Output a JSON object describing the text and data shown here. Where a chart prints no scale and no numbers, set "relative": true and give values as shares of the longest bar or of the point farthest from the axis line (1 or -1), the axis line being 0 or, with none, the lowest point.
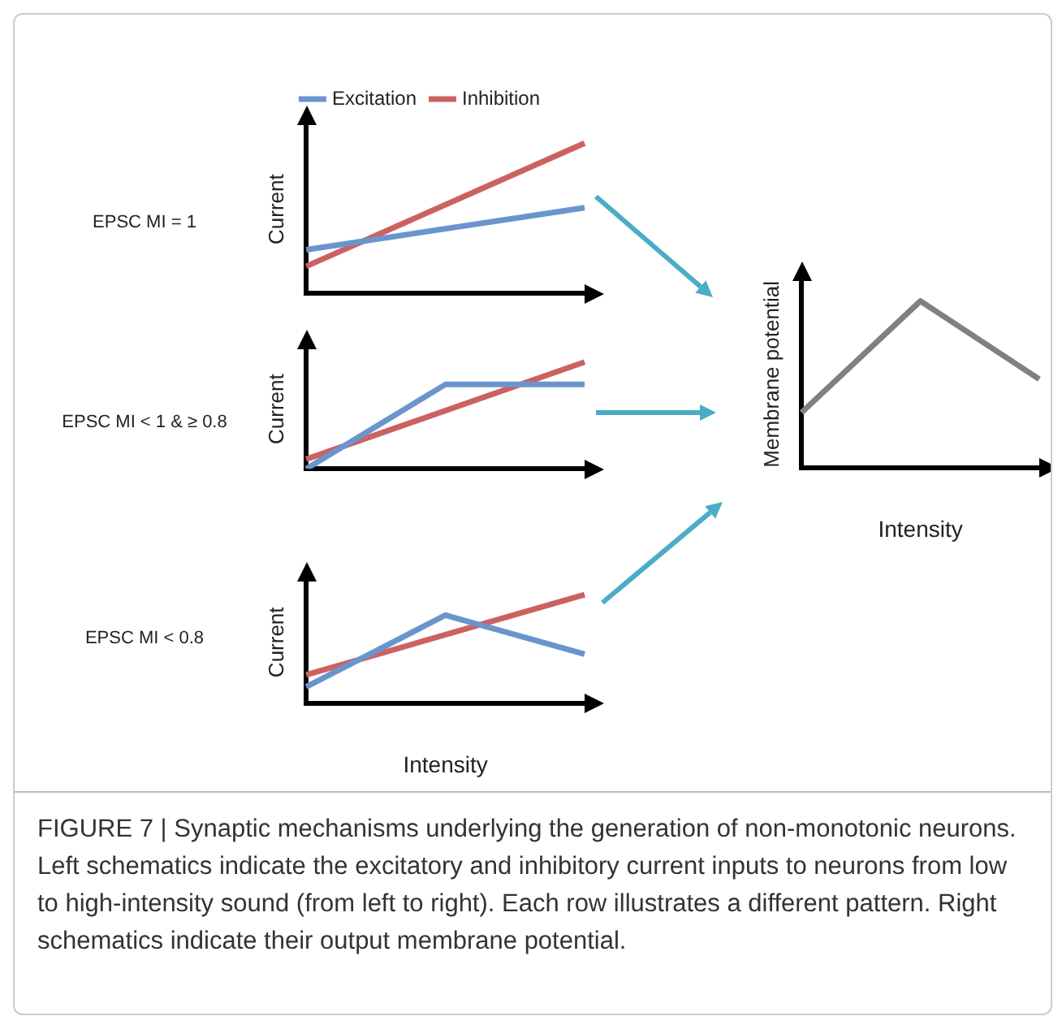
{
  "chart_data": [
    {
      "type": "line",
      "annotations": [
        "EPSC MI = 1"
      ],
      "ylabel": "Current",
      "categories": [
        null,
        null,
        null
      ],
      "relative": true,
      "legend": "top",
      "grid": false,
      "marker": "none",
      "series": [
        {
          "name": "Excitation",
          "color": "#6a95cc",
          "values": [
            0.29,
            null,
            0.57
          ]
        },
        {
          "name": "Inhibition",
          "color": "#cc6161",
          "values": [
            0.18,
            null,
            1
          ]
        }
      ]
    },
    {
      "type": "line",
      "annotations": [
        "EPSC MI < 1 & ≥ 0.8"
      ],
      "ylabel": "Current",
      "categories": [
        null,
        null,
        null
      ],
      "relative": true,
      "legend": false,
      "grid": false,
      "marker": "none",
      "series": [
        {
          "color": "#6a95cc",
          "values": [
            0,
            0.79,
            0.79
          ]
        },
        {
          "color": "#cc6161",
          "values": [
            0.09,
            null,
            1
          ]
        }
      ]
    },
    {
      "type": "line",
      "annotations": [
        "EPSC MI < 0.8"
      ],
      "ylabel": "Current",
      "xlabel": "Intensity",
      "categories": [
        null,
        null,
        null
      ],
      "relative": true,
      "legend": false,
      "grid": false,
      "marker": "none",
      "series": [
        {
          "color": "#6a95cc",
          "values": [
            0.15,
            0.81,
            0.45
          ]
        },
        {
          "color": "#cc6161",
          "values": [
            0.26,
            null,
            1
          ]
        }
      ]
    },
    {
      "type": "line",
      "ylabel": "Membrane potential",
      "xlabel": "Intensity",
      "categories": [
        null,
        null,
        null
      ],
      "relative": true,
      "legend": false,
      "grid": false,
      "marker": "none",
      "series": [
        {
          "color": "#808080",
          "values": [
            0.33,
            1,
            0.53
          ]
        }
      ],
      "annotations": [
        "FIGURE 7 | Synaptic mechanisms underlying the generation of non-monotonic neurons. Left schematics indicate the excitatory and inhibitory current inputs to neurons from low to high-intensity sound (from left to right). Each row illustrates a different pattern. Right schematics indicate their output membrane potential."
      ]
    }
  ]
}
